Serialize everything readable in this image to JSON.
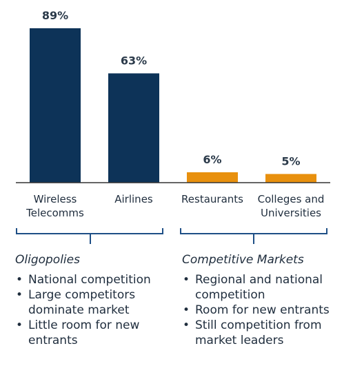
{
  "chart_data": {
    "type": "bar",
    "categories": [
      [
        "Wireless",
        "Telecomms"
      ],
      [
        "Airlines"
      ],
      [
        "Restaurants"
      ],
      [
        "Colleges and",
        "Universities"
      ]
    ],
    "values": [
      89,
      63,
      6,
      5
    ],
    "data_labels": [
      "89%",
      "63%",
      "6%",
      "5%"
    ],
    "bar_colors": [
      "#0d3358",
      "#0d3358",
      "#e8900e",
      "#e8900e"
    ],
    "ylim": [
      0,
      100
    ],
    "grid": false,
    "title": "",
    "xlabel": "",
    "ylabel": ""
  },
  "groups": [
    {
      "title": "Oligopolies",
      "bullets": [
        [
          "National competition"
        ],
        [
          "Large competitors",
          "dominate market"
        ],
        [
          "Little room for new",
          "entrants"
        ]
      ]
    },
    {
      "title": "Competitive Markets",
      "bullets": [
        [
          "Regional and national",
          "competition"
        ],
        [
          "Room for new entrants"
        ],
        [
          "Still competition from",
          "market leaders"
        ]
      ]
    }
  ],
  "colors": {
    "bracket": "#1e4f86",
    "axis": "#333333"
  }
}
